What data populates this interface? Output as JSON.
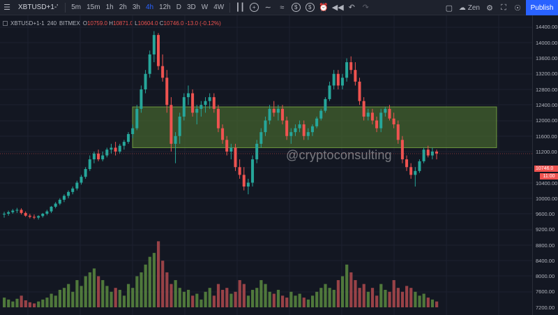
{
  "toolbar": {
    "symbol": "XBTUSD+1-'",
    "intervals": [
      {
        "label": "5m",
        "active": false
      },
      {
        "label": "15m",
        "active": false
      },
      {
        "label": "1h",
        "active": false
      },
      {
        "label": "2h",
        "active": false
      },
      {
        "label": "3h",
        "active": false
      },
      {
        "label": "4h",
        "active": true
      },
      {
        "label": "12h",
        "active": false
      },
      {
        "label": "D",
        "active": false
      },
      {
        "label": "3D",
        "active": false
      },
      {
        "label": "W",
        "active": false
      },
      {
        "label": "4W",
        "active": false
      }
    ],
    "theme_label": "Zen",
    "publish_label": "Publish"
  },
  "legend": {
    "symbol": "XBTUSD+1-1",
    "interval": "240",
    "exchange": "BITMEX",
    "open_key": "O",
    "open": "10759.0",
    "high_key": "H",
    "high": "10871.0",
    "low_key": "L",
    "low": "10604.0",
    "close_key": "C",
    "close": "10746.0",
    "change": "-13.0 (-0.12%)"
  },
  "price_axis": {
    "ticks": [
      "14400.00",
      "14000.00",
      "13600.00",
      "13200.00",
      "12800.00",
      "12400.00",
      "12000.00",
      "11600.00",
      "11200.00",
      "10800.00",
      "10400.00",
      "10000.00",
      "9600.00",
      "9200.00",
      "8800.00",
      "8400.00",
      "8000.00",
      "7600.00",
      "7200.00"
    ],
    "last_price": "10746.0",
    "countdown": "11:00"
  },
  "watermark": "@cryptoconsulting",
  "colors": {
    "up": "#26a69a",
    "down": "#ef5350",
    "zone_fill": "#4a6b30",
    "zone_stroke": "#8bc34a",
    "background": "#131722"
  },
  "chart_data": {
    "type": "candlestick",
    "price_range": [
      7200,
      14400
    ],
    "zone": {
      "low": 10900,
      "high": 11950
    },
    "last_price": 10746,
    "ohlc": [
      [
        9180,
        9250,
        9100,
        9200
      ],
      [
        9200,
        9280,
        9150,
        9240
      ],
      [
        9240,
        9320,
        9200,
        9280
      ],
      [
        9280,
        9350,
        9220,
        9300
      ],
      [
        9300,
        9340,
        9180,
        9220
      ],
      [
        9220,
        9260,
        9120,
        9150
      ],
      [
        9150,
        9200,
        9080,
        9120
      ],
      [
        9120,
        9180,
        9060,
        9100
      ],
      [
        9100,
        9160,
        9050,
        9140
      ],
      [
        9140,
        9220,
        9100,
        9200
      ],
      [
        9200,
        9300,
        9160,
        9260
      ],
      [
        9260,
        9400,
        9220,
        9380
      ],
      [
        9380,
        9500,
        9340,
        9460
      ],
      [
        9460,
        9600,
        9420,
        9560
      ],
      [
        9560,
        9700,
        9500,
        9660
      ],
      [
        9660,
        9800,
        9600,
        9760
      ],
      [
        9760,
        9900,
        9700,
        9850
      ],
      [
        9850,
        10050,
        9800,
        10000
      ],
      [
        10000,
        10200,
        9950,
        10150
      ],
      [
        10150,
        10400,
        10100,
        10350
      ],
      [
        10350,
        10700,
        10300,
        10600
      ],
      [
        10600,
        10800,
        10500,
        10750
      ],
      [
        10750,
        10850,
        10550,
        10600
      ],
      [
        10600,
        10800,
        10550,
        10700
      ],
      [
        10700,
        10900,
        10650,
        10850
      ],
      [
        10850,
        11000,
        10750,
        10900
      ],
      [
        10900,
        11050,
        10700,
        10800
      ],
      [
        10800,
        11000,
        10750,
        10950
      ],
      [
        10950,
        11100,
        10850,
        11050
      ],
      [
        11050,
        11300,
        11000,
        11250
      ],
      [
        11250,
        11500,
        11150,
        11400
      ],
      [
        11400,
        12000,
        11350,
        11900
      ],
      [
        11900,
        12500,
        11800,
        12400
      ],
      [
        12400,
        12900,
        12300,
        12800
      ],
      [
        12800,
        13400,
        12700,
        13300
      ],
      [
        13300,
        13900,
        13100,
        13800
      ],
      [
        13800,
        13850,
        12900,
        13000
      ],
      [
        13000,
        13300,
        12600,
        12700
      ],
      [
        12700,
        12900,
        11800,
        12000
      ],
      [
        12000,
        12200,
        10800,
        11000
      ],
      [
        11000,
        11300,
        10500,
        11200
      ],
      [
        11200,
        11800,
        11000,
        11700
      ],
      [
        11700,
        12300,
        11600,
        12200
      ],
      [
        12200,
        12500,
        12000,
        12300
      ],
      [
        12300,
        12400,
        11700,
        11800
      ],
      [
        11800,
        12000,
        11500,
        11900
      ],
      [
        11900,
        12100,
        11700,
        12000
      ],
      [
        12000,
        12200,
        11800,
        12100
      ],
      [
        12100,
        12300,
        11900,
        12200
      ],
      [
        12200,
        12300,
        11800,
        11900
      ],
      [
        11900,
        12000,
        11300,
        11400
      ],
      [
        11400,
        11500,
        11000,
        11100
      ],
      [
        11100,
        11200,
        10700,
        10800
      ],
      [
        10800,
        11000,
        10600,
        10900
      ],
      [
        10900,
        11000,
        10300,
        10400
      ],
      [
        10400,
        10600,
        10100,
        10200
      ],
      [
        10200,
        10400,
        9800,
        9900
      ],
      [
        9900,
        10100,
        9700,
        10000
      ],
      [
        10000,
        10700,
        9900,
        10600
      ],
      [
        10600,
        11100,
        10500,
        11000
      ],
      [
        11000,
        11400,
        10900,
        11300
      ],
      [
        11300,
        11700,
        11200,
        11600
      ],
      [
        11600,
        12000,
        11500,
        11900
      ],
      [
        11900,
        12100,
        11700,
        11800
      ],
      [
        11800,
        12000,
        11600,
        11900
      ],
      [
        11900,
        12000,
        11500,
        11600
      ],
      [
        11600,
        11700,
        11100,
        11200
      ],
      [
        11200,
        11400,
        11000,
        11300
      ],
      [
        11300,
        11500,
        11200,
        11400
      ],
      [
        11400,
        11600,
        11300,
        11500
      ],
      [
        11500,
        11600,
        11100,
        11200
      ],
      [
        11200,
        11400,
        11100,
        11300
      ],
      [
        11300,
        11500,
        11200,
        11450
      ],
      [
        11450,
        11700,
        11400,
        11650
      ],
      [
        11650,
        11900,
        11600,
        11850
      ],
      [
        11850,
        12200,
        11800,
        12150
      ],
      [
        12150,
        12600,
        12100,
        12500
      ],
      [
        12500,
        12900,
        12400,
        12800
      ],
      [
        12800,
        12900,
        12400,
        12500
      ],
      [
        12500,
        12800,
        12400,
        12700
      ],
      [
        12700,
        13200,
        12600,
        13100
      ],
      [
        13100,
        13250,
        12800,
        12900
      ],
      [
        12900,
        13100,
        12500,
        12600
      ],
      [
        12600,
        12700,
        12000,
        12100
      ],
      [
        12100,
        12200,
        11600,
        11700
      ],
      [
        11700,
        11900,
        11600,
        11800
      ],
      [
        11800,
        11900,
        11500,
        11600
      ],
      [
        11600,
        11700,
        11300,
        11400
      ],
      [
        11400,
        11900,
        11300,
        11800
      ],
      [
        11800,
        11950,
        11700,
        11900
      ],
      [
        11900,
        12000,
        11600,
        11650
      ],
      [
        11650,
        11800,
        11400,
        11500
      ],
      [
        11500,
        11600,
        11000,
        11100
      ],
      [
        11100,
        11200,
        10500,
        10600
      ],
      [
        10600,
        10700,
        10300,
        10400
      ],
      [
        10400,
        10500,
        10100,
        10200
      ],
      [
        10200,
        10400,
        9900,
        10300
      ],
      [
        10300,
        10600,
        10250,
        10550
      ],
      [
        10550,
        10900,
        10500,
        10850
      ],
      [
        10850,
        10950,
        10650,
        10700
      ],
      [
        10700,
        10900,
        10600,
        10800
      ],
      [
        10800,
        10850,
        10600,
        10750
      ]
    ],
    "volume_range": [
      7000,
      9000
    ],
    "volume": [
      7450,
      7400,
      7350,
      7420,
      7500,
      7380,
      7330,
      7300,
      7350,
      7400,
      7450,
      7550,
      7500,
      7650,
      7700,
      7800,
      7600,
      7900,
      7750,
      8000,
      8100,
      8200,
      8000,
      7900,
      7750,
      7600,
      7700,
      7650,
      7500,
      7800,
      7700,
      8000,
      8100,
      8300,
      8500,
      8600,
      8900,
      8400,
      8100,
      7800,
      7900,
      7700,
      7600,
      7650,
      7500,
      7550,
      7400,
      7600,
      7700,
      7500,
      7800,
      7650,
      7700,
      7550,
      7600,
      7900,
      7800,
      7500,
      7650,
      7700,
      7900,
      7800,
      7600,
      7550,
      7650,
      7500,
      7450,
      7600,
      7500,
      7550,
      7450,
      7400,
      7500,
      7600,
      7700,
      7800,
      7700,
      7650,
      7900,
      8000,
      8300,
      8100,
      7900,
      7700,
      7800,
      7600,
      7700,
      7500,
      7800,
      7650,
      7600,
      7900,
      7700,
      7600,
      7750,
      7700,
      7600,
      7500,
      7550,
      7450,
      7400,
      7350
    ]
  }
}
